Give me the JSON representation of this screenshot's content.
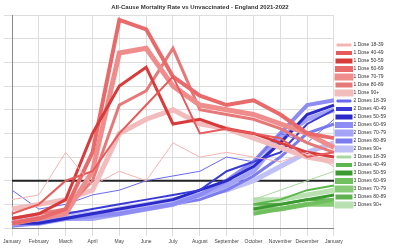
{
  "chart_data": {
    "type": "line",
    "title": "All-Cause Mortality Rate vs Unvaccinated - England 2021-2022",
    "categories": [
      "January",
      "February",
      "March",
      "April",
      "May",
      "June",
      "July",
      "August",
      "September",
      "October",
      "November",
      "December",
      "January"
    ],
    "ylim": [
      0,
      4.5
    ],
    "yticks": [
      0,
      0.5,
      1,
      1.5,
      2,
      2.5,
      3,
      3.5,
      4,
      4.5
    ],
    "grid": true,
    "legend": "right",
    "tick_labels": "x",
    "baseline": 1,
    "series": [
      {
        "name": "1 Dose 18-39",
        "color": "#f4b4b4",
        "values": [
          0.6,
          0.7,
          1.6,
          0.9,
          1.2,
          1.0,
          1.8,
          1.5,
          1.6,
          1.5,
          1.4,
          1.6,
          1.3
        ]
      },
      {
        "name": "1 Dose 40-49",
        "color": "#e85a5a",
        "values": [
          0.3,
          0.5,
          1.0,
          1.2,
          2.0,
          2.6,
          3.2,
          2.0,
          2.1,
          2.0,
          1.9,
          1.5,
          1.6
        ]
      },
      {
        "name": "1 Dose 50-59",
        "color": "#d93a3a",
        "values": [
          0.2,
          0.3,
          0.6,
          2.0,
          3.0,
          3.4,
          2.2,
          2.3,
          2.1,
          2.0,
          1.8,
          1.6,
          1.5
        ]
      },
      {
        "name": "1 Dose 60-69",
        "color": "#e86a6a",
        "values": [
          0.1,
          0.2,
          0.4,
          1.6,
          4.4,
          4.2,
          3.2,
          2.8,
          2.6,
          2.7,
          2.4,
          2.0,
          1.9
        ]
      },
      {
        "name": "1 Dose 70-79",
        "color": "#ef8c8c",
        "values": [
          0.1,
          0.2,
          0.3,
          1.2,
          3.7,
          3.8,
          3.0,
          2.6,
          2.5,
          2.4,
          2.2,
          2.0,
          1.7
        ]
      },
      {
        "name": "1 Dose 80-89",
        "color": "#e77878",
        "values": [
          0.2,
          0.3,
          0.4,
          1.0,
          2.6,
          2.9,
          3.8,
          2.5,
          2.4,
          2.3,
          2.1,
          1.8,
          1.6
        ]
      },
      {
        "name": "1 Dose 90+",
        "color": "#f2bcbc",
        "values": [
          0.4,
          0.5,
          0.6,
          0.8,
          2.0,
          2.3,
          2.5,
          2.2,
          2.1,
          1.9,
          1.7,
          1.5,
          1.4
        ]
      },
      {
        "name": "2 Doses 18-39",
        "color": "#6a6af0",
        "values": [
          0.8,
          0.4,
          0.5,
          0.7,
          0.8,
          1.0,
          1.1,
          1.2,
          1.5,
          1.4,
          2.0,
          1.8,
          2.3
        ]
      },
      {
        "name": "2 Doses 40-49",
        "color": "#3a3ad8",
        "values": [
          0.1,
          0.2,
          0.3,
          0.4,
          0.5,
          0.6,
          0.7,
          0.8,
          1.2,
          1.4,
          1.6,
          2.2,
          2.5
        ]
      },
      {
        "name": "2 Doses 50-59",
        "color": "#2a2ac8",
        "values": [
          0.1,
          0.1,
          0.2,
          0.3,
          0.4,
          0.5,
          0.6,
          0.8,
          1.0,
          1.3,
          1.8,
          2.4,
          2.6
        ]
      },
      {
        "name": "2 Doses 60-69",
        "color": "#8c8cf4",
        "values": [
          0.05,
          0.1,
          0.2,
          0.25,
          0.3,
          0.4,
          0.5,
          0.7,
          1.0,
          1.4,
          2.0,
          2.6,
          2.7
        ]
      },
      {
        "name": "2 Doses 70-79",
        "color": "#a4a4f6",
        "values": [
          0.1,
          0.1,
          0.2,
          0.2,
          0.3,
          0.4,
          0.5,
          0.7,
          0.9,
          1.2,
          1.9,
          2.3,
          2.5
        ]
      },
      {
        "name": "2 Doses 80-89",
        "color": "#7c7cee",
        "values": [
          0.1,
          0.15,
          0.2,
          0.3,
          0.3,
          0.4,
          0.5,
          0.6,
          0.8,
          1.1,
          1.5,
          2.0,
          2.2
        ]
      },
      {
        "name": "2 Doses 90+",
        "color": "#c0c0f8",
        "values": [
          0.2,
          0.2,
          0.3,
          0.3,
          0.4,
          0.5,
          0.6,
          0.7,
          0.8,
          1.0,
          1.3,
          1.6,
          1.8
        ]
      },
      {
        "name": "3 Doses 18-39",
        "color": "#a8d8a0",
        "values": [
          null,
          null,
          null,
          null,
          null,
          null,
          null,
          null,
          null,
          0.6,
          0.8,
          1.0,
          1.2
        ]
      },
      {
        "name": "3 Doses 40-49",
        "color": "#5cb84c",
        "values": [
          null,
          null,
          null,
          null,
          null,
          null,
          null,
          null,
          null,
          0.5,
          0.6,
          0.8,
          0.9
        ]
      },
      {
        "name": "3 Doses 50-59",
        "color": "#3a9a30",
        "values": [
          null,
          null,
          null,
          null,
          null,
          null,
          null,
          null,
          null,
          0.4,
          0.5,
          0.6,
          0.7
        ]
      },
      {
        "name": "3 Doses 60-69",
        "color": "#70c060",
        "values": [
          null,
          null,
          null,
          null,
          null,
          null,
          null,
          null,
          null,
          0.3,
          0.4,
          0.5,
          0.6
        ]
      },
      {
        "name": "3 Doses 70-79",
        "color": "#88cc78",
        "values": [
          null,
          null,
          null,
          null,
          null,
          null,
          null,
          null,
          null,
          0.4,
          0.4,
          0.5,
          0.5
        ]
      },
      {
        "name": "3 Doses 80-89",
        "color": "#60b050",
        "values": [
          null,
          null,
          null,
          null,
          null,
          null,
          null,
          null,
          null,
          0.5,
          0.5,
          0.6,
          0.6
        ]
      },
      {
        "name": "3 Doses 90+",
        "color": "#b8e0b0",
        "values": [
          null,
          null,
          null,
          null,
          null,
          null,
          null,
          null,
          null,
          0.6,
          0.6,
          0.7,
          0.8
        ]
      }
    ]
  }
}
